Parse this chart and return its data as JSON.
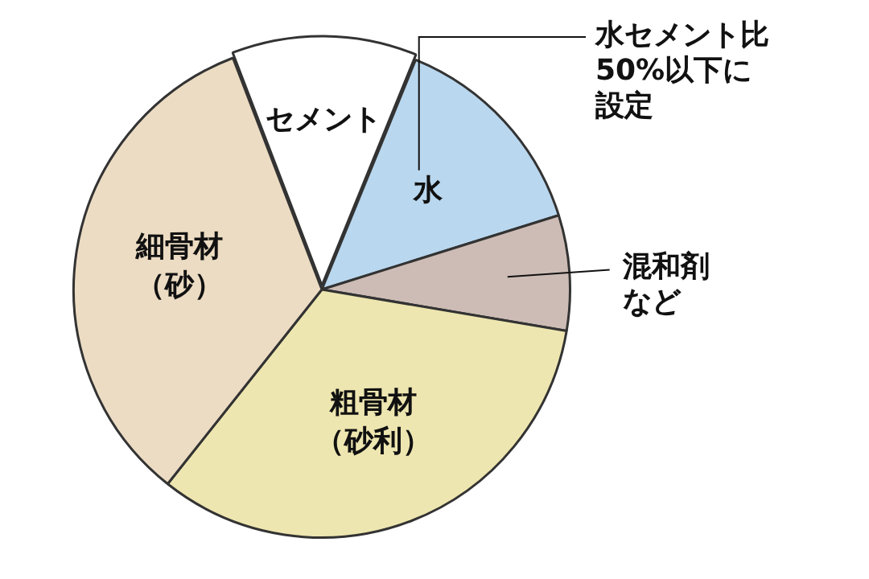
{
  "chart_data": {
    "type": "pie",
    "categories": [
      "セメント",
      "水",
      "混和剤など",
      "粗骨材（砂利）",
      "細骨材（砂）"
    ],
    "values": [
      12,
      14,
      7.5,
      33,
      33.5
    ],
    "colors": [
      "#ffffff",
      "#b9d7ee",
      "#cdbcb5",
      "#eee6b0",
      "#ecdcc3"
    ],
    "annotations": [
      "水セメント比50%以下に設定"
    ],
    "legend": false
  }
}
